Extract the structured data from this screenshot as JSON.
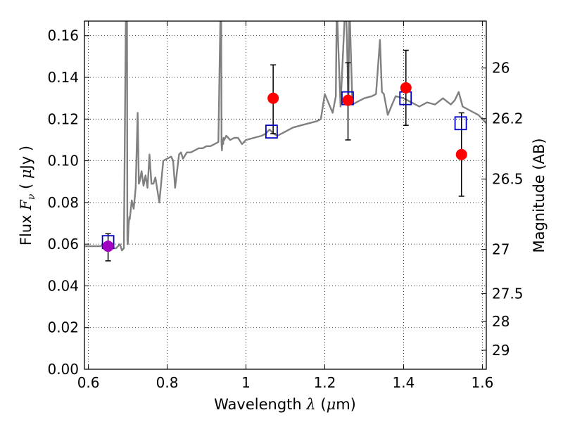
{
  "chart_data": {
    "type": "scatter",
    "xlabel": "Wavelength  λ (μm)",
    "ylabel": "Flux  Fν  ( μJy )",
    "y2label": "Magnitude (AB)",
    "xlim": [
      0.59,
      1.61
    ],
    "ylim": [
      0.0,
      0.167
    ],
    "grid": true,
    "x_ticks": [
      0.6,
      0.8,
      1.0,
      1.2,
      1.4,
      1.6
    ],
    "x_tick_labels": [
      "0.6",
      "0.8",
      "1",
      "1.2",
      "1.4",
      "1.6"
    ],
    "y_ticks": [
      0.0,
      0.02,
      0.04,
      0.06,
      0.08,
      0.1,
      0.12,
      0.14,
      0.16
    ],
    "y_tick_labels": [
      "0.00",
      "0.02",
      "0.04",
      "0.06",
      "0.08",
      "0.10",
      "0.12",
      "0.14",
      "0.16"
    ],
    "y2_ticks": [
      {
        "label": "26",
        "flux": 0.1445
      },
      {
        "label": "26.2",
        "flux": 0.1202
      },
      {
        "label": "26.5",
        "flux": 0.0912
      },
      {
        "label": "27",
        "flux": 0.0575
      },
      {
        "label": "27.5",
        "flux": 0.0363
      },
      {
        "label": "28",
        "flux": 0.0229
      },
      {
        "label": "29",
        "flux": 0.0091
      }
    ],
    "series": [
      {
        "name": "model spectrum",
        "kind": "line",
        "color": "#808080",
        "x": [
          0.59,
          0.61,
          0.63,
          0.64,
          0.65,
          0.66,
          0.67,
          0.68,
          0.685,
          0.69,
          0.695,
          0.698,
          0.699,
          0.7,
          0.702,
          0.704,
          0.705,
          0.71,
          0.715,
          0.72,
          0.725,
          0.728,
          0.73,
          0.735,
          0.74,
          0.745,
          0.75,
          0.755,
          0.76,
          0.765,
          0.77,
          0.78,
          0.79,
          0.8,
          0.81,
          0.815,
          0.82,
          0.83,
          0.835,
          0.84,
          0.85,
          0.86,
          0.87,
          0.88,
          0.89,
          0.9,
          0.91,
          0.92,
          0.93,
          0.935,
          0.937,
          0.938,
          0.939,
          0.94,
          0.942,
          0.943,
          0.945,
          0.95,
          0.96,
          0.97,
          0.98,
          0.99,
          1.0,
          1.02,
          1.04,
          1.05,
          1.06,
          1.07,
          1.08,
          1.1,
          1.12,
          1.14,
          1.16,
          1.18,
          1.19,
          1.2,
          1.22,
          1.228,
          1.23,
          1.232,
          1.24,
          1.25,
          1.255,
          1.26,
          1.262,
          1.264,
          1.27,
          1.28,
          1.3,
          1.32,
          1.33,
          1.34,
          1.345,
          1.35,
          1.36,
          1.38,
          1.4,
          1.42,
          1.44,
          1.46,
          1.48,
          1.5,
          1.52,
          1.53,
          1.54,
          1.55,
          1.57,
          1.59,
          1.61
        ],
        "y": [
          0.059,
          0.059,
          0.059,
          0.06,
          0.059,
          0.058,
          0.058,
          0.06,
          0.057,
          0.058,
          0.167,
          0.167,
          0.062,
          0.06,
          0.069,
          0.073,
          0.072,
          0.081,
          0.077,
          0.087,
          0.123,
          0.089,
          0.09,
          0.095,
          0.088,
          0.093,
          0.087,
          0.103,
          0.089,
          0.089,
          0.092,
          0.08,
          0.1,
          0.101,
          0.102,
          0.1,
          0.087,
          0.103,
          0.104,
          0.101,
          0.104,
          0.104,
          0.105,
          0.106,
          0.106,
          0.107,
          0.107,
          0.108,
          0.109,
          0.167,
          0.167,
          0.108,
          0.105,
          0.11,
          0.108,
          0.111,
          0.11,
          0.112,
          0.11,
          0.111,
          0.111,
          0.108,
          0.11,
          0.111,
          0.112,
          0.113,
          0.115,
          0.113,
          0.112,
          0.114,
          0.116,
          0.117,
          0.118,
          0.119,
          0.12,
          0.132,
          0.123,
          0.131,
          0.167,
          0.167,
          0.126,
          0.167,
          0.167,
          0.128,
          0.167,
          0.167,
          0.127,
          0.128,
          0.13,
          0.131,
          0.132,
          0.158,
          0.133,
          0.132,
          0.122,
          0.131,
          0.13,
          0.128,
          0.126,
          0.128,
          0.127,
          0.13,
          0.127,
          0.129,
          0.133,
          0.126,
          0.124,
          0.122,
          0.118
        ]
      },
      {
        "name": "model photometry",
        "kind": "open-square",
        "color": "#0000c0",
        "x": [
          0.65,
          1.065,
          1.258,
          1.405,
          1.545
        ],
        "y": [
          0.061,
          0.114,
          0.13,
          0.13,
          0.118
        ]
      },
      {
        "name": "observed flux",
        "kind": "filled-circle-errorbar",
        "colors": [
          "#a000c0",
          "#ff0000",
          "#ff0000",
          "#ff0000",
          "#ff0000"
        ],
        "x": [
          0.65,
          1.069,
          1.259,
          1.406,
          1.547
        ],
        "y": [
          0.059,
          0.13,
          0.129,
          0.135,
          0.103
        ],
        "yerr_low": [
          0.052,
          0.113,
          0.11,
          0.117,
          0.083
        ],
        "yerr_high": [
          0.065,
          0.146,
          0.147,
          0.153,
          0.123
        ]
      }
    ]
  }
}
